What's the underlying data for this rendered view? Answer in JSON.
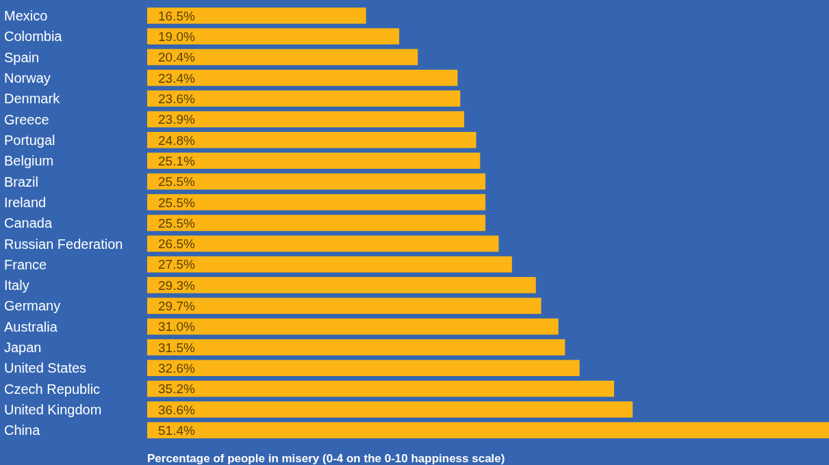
{
  "chart_data": {
    "type": "bar",
    "orientation": "horizontal",
    "xlabel": "Percentage of people in misery (0-4 on the 0-10 happiness scale)",
    "categories": [
      "Mexico",
      "Colombia",
      "Spain",
      "Norway",
      "Denmark",
      "Greece",
      "Portugal",
      "Belgium",
      "Brazil",
      "Ireland",
      "Canada",
      "Russian Federation",
      "France",
      "Italy",
      "Germany",
      "Australia",
      "Japan",
      "United States",
      "Czech Republic",
      "United Kingdom",
      "China"
    ],
    "values": [
      16.5,
      19.0,
      20.4,
      23.4,
      23.6,
      23.9,
      24.8,
      25.1,
      25.5,
      25.5,
      25.5,
      26.5,
      27.5,
      29.3,
      29.7,
      31.0,
      31.5,
      32.6,
      35.2,
      36.6,
      51.4
    ],
    "value_labels": [
      "16.5%",
      "19.0%",
      "20.4%",
      "23.4%",
      "23.6%",
      "23.9%",
      "24.8%",
      "25.1%",
      "25.5%",
      "25.5%",
      "25.5%",
      "26.5%",
      "27.5%",
      "29.3%",
      "29.7%",
      "31.0%",
      "31.5%",
      "32.6%",
      "35.2%",
      "36.6%",
      "51.4%"
    ],
    "color": "#fdb515",
    "xlim": [
      0,
      51.4
    ]
  }
}
